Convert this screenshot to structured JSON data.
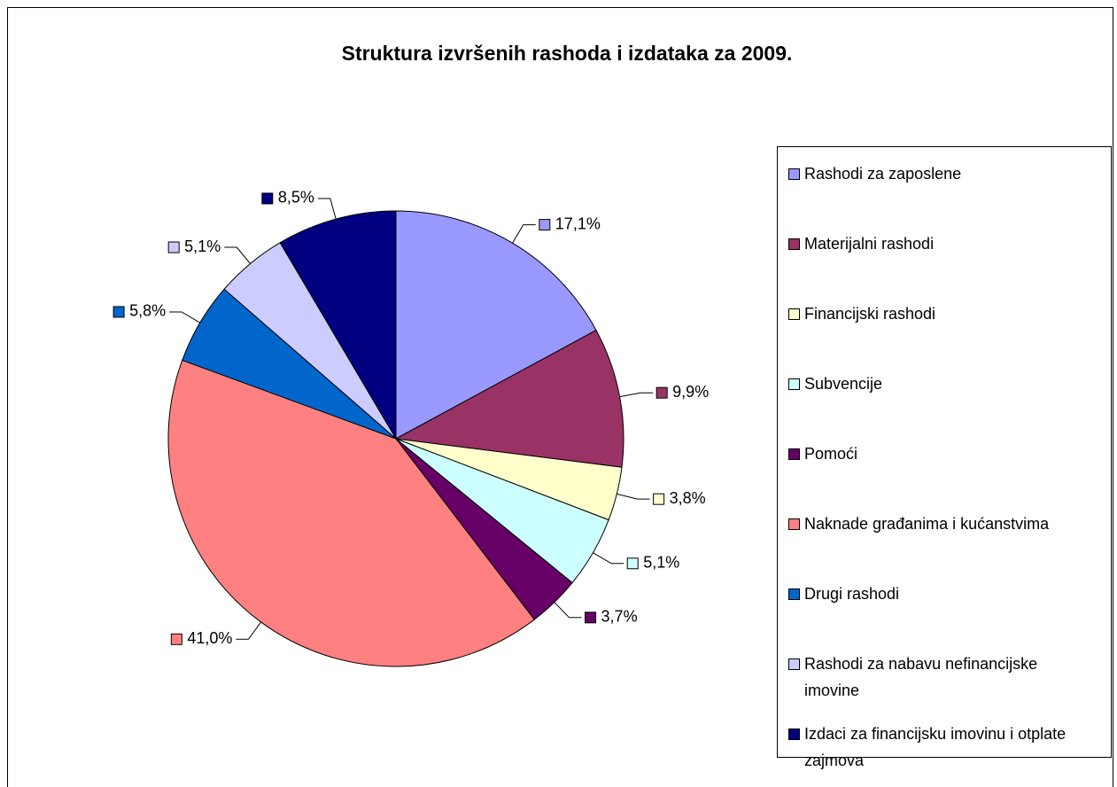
{
  "chart_data": {
    "type": "pie",
    "title": "Struktura izvršenih rashoda i izdataka za 2009.",
    "categories": [
      "Rashodi za zaposlene",
      "Materijalni rashodi",
      "Financijski rashodi",
      "Subvencije",
      "Pomoći",
      "Naknade građanima i kućanstvima",
      "Drugi rashodi",
      "Rashodi za nabavu nefinancijske imovine",
      "Izdaci za financijsku imovinu i otplate zajmova"
    ],
    "values": [
      17.1,
      9.9,
      3.8,
      5.1,
      3.7,
      41.0,
      5.8,
      5.1,
      8.5
    ],
    "value_labels": [
      "17,1%",
      "9,9%",
      "3,8%",
      "5,1%",
      "3,7%",
      "41,0%",
      "5,8%",
      "5,1%",
      "8,5%"
    ],
    "colors": [
      "#9999ff",
      "#993366",
      "#ffffcc",
      "#ccffff",
      "#660066",
      "#ff8080",
      "#0066cc",
      "#ccccff",
      "#000080"
    ],
    "legend": "right"
  }
}
